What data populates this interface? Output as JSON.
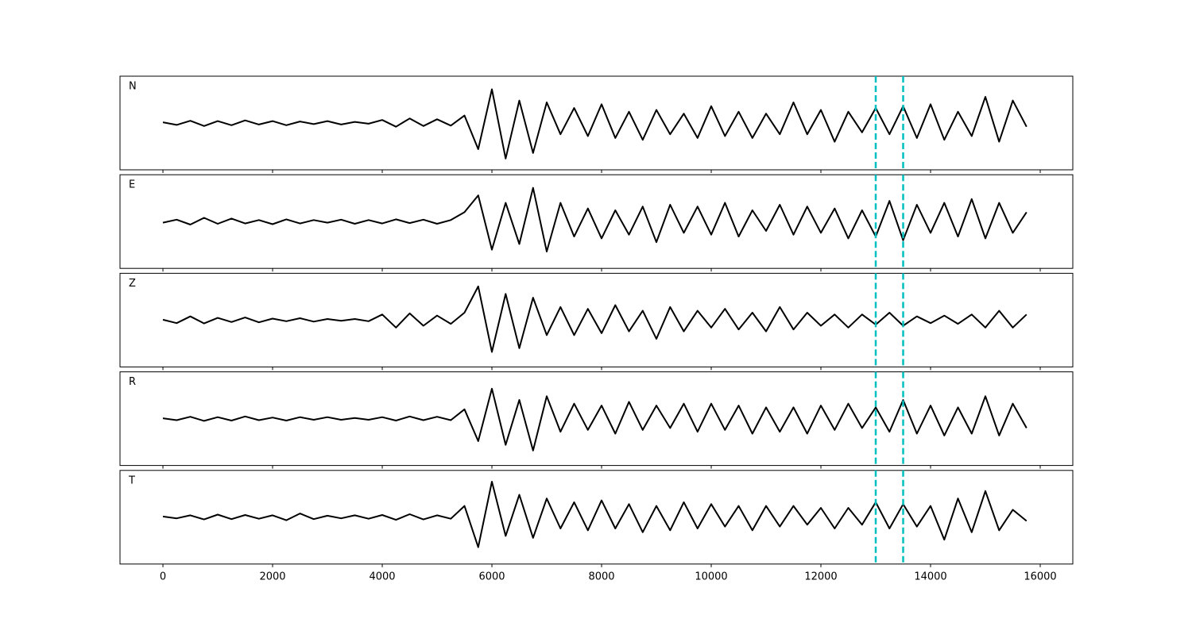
{
  "chart_data": {
    "type": "line",
    "layout": "stacked",
    "x": [
      0,
      250,
      500,
      750,
      1000,
      1250,
      1500,
      1750,
      2000,
      2250,
      2500,
      2750,
      3000,
      3250,
      3500,
      3750,
      4000,
      4250,
      4500,
      4750,
      5000,
      5250,
      5500,
      5750,
      6000,
      6250,
      6500,
      6750,
      7000,
      7250,
      7500,
      7750,
      8000,
      8250,
      8500,
      8750,
      9000,
      9250,
      9500,
      9750,
      10000,
      10250,
      10500,
      10750,
      11000,
      11250,
      11500,
      11750,
      12000,
      12250,
      12500,
      12750,
      13000,
      13250,
      13500,
      13750,
      14000,
      14250,
      14500,
      14750,
      15000,
      15250,
      15500,
      15750
    ],
    "series": [
      {
        "name": "N",
        "color": "#000000",
        "values": [
          0.02,
          -0.05,
          0.06,
          -0.08,
          0.05,
          -0.06,
          0.07,
          -0.04,
          0.05,
          -0.06,
          0.04,
          -0.03,
          0.05,
          -0.04,
          0.03,
          -0.02,
          0.08,
          -0.1,
          0.12,
          -0.08,
          0.1,
          -0.07,
          0.2,
          -0.7,
          0.9,
          -0.95,
          0.6,
          -0.8,
          0.55,
          -0.3,
          0.4,
          -0.35,
          0.5,
          -0.4,
          0.3,
          -0.45,
          0.35,
          -0.3,
          0.25,
          -0.4,
          0.45,
          -0.35,
          0.3,
          -0.4,
          0.25,
          -0.3,
          0.55,
          -0.3,
          0.35,
          -0.5,
          0.3,
          -0.25,
          0.4,
          -0.3,
          0.45,
          -0.4,
          0.5,
          -0.45,
          0.3,
          -0.35,
          0.7,
          -0.5,
          0.6,
          -0.1
        ]
      },
      {
        "name": "E",
        "color": "#000000",
        "values": [
          -0.03,
          0.05,
          -0.08,
          0.1,
          -0.06,
          0.08,
          -0.05,
          0.04,
          -0.07,
          0.06,
          -0.05,
          0.04,
          -0.03,
          0.05,
          -0.06,
          0.04,
          -0.05,
          0.06,
          -0.04,
          0.05,
          -0.06,
          0.04,
          0.25,
          0.7,
          -0.75,
          0.5,
          -0.6,
          0.9,
          -0.8,
          0.5,
          -0.4,
          0.35,
          -0.45,
          0.3,
          -0.35,
          0.4,
          -0.55,
          0.45,
          -0.3,
          0.4,
          -0.35,
          0.5,
          -0.4,
          0.3,
          -0.25,
          0.45,
          -0.35,
          0.4,
          -0.3,
          0.35,
          -0.45,
          0.3,
          -0.4,
          0.55,
          -0.5,
          0.45,
          -0.3,
          0.5,
          -0.4,
          0.6,
          -0.45,
          0.5,
          -0.3,
          0.25
        ]
      },
      {
        "name": "Z",
        "color": "#000000",
        "values": [
          0.01,
          -0.08,
          0.1,
          -0.09,
          0.06,
          -0.05,
          0.07,
          -0.06,
          0.04,
          -0.03,
          0.05,
          -0.04,
          0.03,
          -0.02,
          0.03,
          -0.03,
          0.15,
          -0.2,
          0.18,
          -0.15,
          0.12,
          -0.1,
          0.2,
          0.9,
          -0.85,
          0.7,
          -0.75,
          0.6,
          -0.4,
          0.35,
          -0.4,
          0.3,
          -0.35,
          0.4,
          -0.3,
          0.25,
          -0.5,
          0.35,
          -0.3,
          0.25,
          -0.2,
          0.3,
          -0.25,
          0.2,
          -0.3,
          0.35,
          -0.25,
          0.2,
          -0.15,
          0.15,
          -0.2,
          0.15,
          -0.12,
          0.2,
          -0.15,
          0.1,
          -0.08,
          0.12,
          -0.1,
          0.15,
          -0.2,
          0.25,
          -0.2,
          0.15
        ]
      },
      {
        "name": "R",
        "color": "#000000",
        "values": [
          0.01,
          -0.04,
          0.05,
          -0.06,
          0.04,
          -0.05,
          0.06,
          -0.04,
          0.03,
          -0.05,
          0.04,
          -0.03,
          0.04,
          -0.03,
          0.02,
          -0.03,
          0.04,
          -0.05,
          0.06,
          -0.04,
          0.05,
          -0.04,
          0.25,
          -0.6,
          0.8,
          -0.7,
          0.5,
          -0.85,
          0.6,
          -0.35,
          0.4,
          -0.3,
          0.35,
          -0.4,
          0.45,
          -0.3,
          0.35,
          -0.25,
          0.4,
          -0.35,
          0.4,
          -0.3,
          0.35,
          -0.4,
          0.3,
          -0.35,
          0.3,
          -0.4,
          0.35,
          -0.3,
          0.4,
          -0.25,
          0.3,
          -0.35,
          0.5,
          -0.4,
          0.35,
          -0.45,
          0.3,
          -0.4,
          0.6,
          -0.45,
          0.4,
          -0.25
        ]
      },
      {
        "name": "T",
        "color": "#000000",
        "values": [
          0.02,
          -0.03,
          0.05,
          -0.06,
          0.07,
          -0.05,
          0.06,
          -0.04,
          0.05,
          -0.08,
          0.1,
          -0.05,
          0.04,
          -0.03,
          0.05,
          -0.04,
          0.06,
          -0.07,
          0.08,
          -0.06,
          0.05,
          -0.04,
          0.3,
          -0.8,
          0.95,
          -0.5,
          0.6,
          -0.55,
          0.5,
          -0.3,
          0.4,
          -0.35,
          0.45,
          -0.3,
          0.35,
          -0.4,
          0.3,
          -0.35,
          0.4,
          -0.3,
          0.35,
          -0.25,
          0.3,
          -0.35,
          0.3,
          -0.25,
          0.3,
          -0.2,
          0.25,
          -0.3,
          0.25,
          -0.2,
          0.4,
          -0.3,
          0.35,
          -0.25,
          0.3,
          -0.6,
          0.5,
          -0.4,
          0.7,
          -0.35,
          0.2,
          -0.1
        ]
      }
    ],
    "xlim": [
      -783,
      16594
    ],
    "xticks": [
      0,
      2000,
      4000,
      6000,
      8000,
      10000,
      12000,
      14000,
      16000
    ],
    "ylim": [
      -1.25,
      1.25
    ],
    "vlines": [
      13000,
      13500
    ],
    "vline_color": "#00bfbf"
  }
}
